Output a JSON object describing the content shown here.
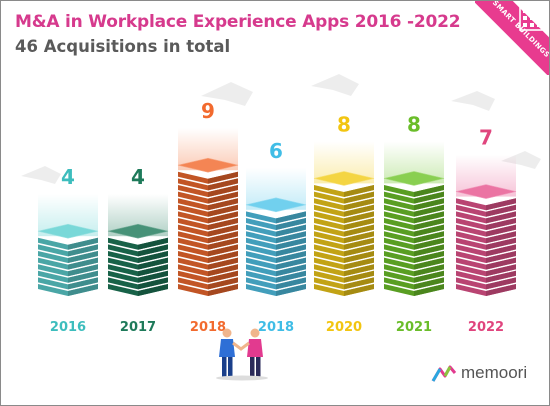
{
  "header": {
    "title": "M&A in Workplace Experience Apps 2016 -2022",
    "subtitle": "46 Acquisitions in total"
  },
  "badge": {
    "label": "SMART BUILDINGS",
    "color": "#e83b8f"
  },
  "logo": {
    "text": "memoori"
  },
  "chart_data": {
    "type": "bar",
    "title": "M&A in Workplace Experience Apps 2016 -2022",
    "subtitle": "46 Acquisitions in total",
    "categories": [
      "2016",
      "2017",
      "2018",
      "2018",
      "2020",
      "2021",
      "2022"
    ],
    "values": [
      4,
      4,
      9,
      6,
      8,
      8,
      7
    ],
    "colors": [
      "#5ccfcf",
      "#1e7a5a",
      "#f26a2e",
      "#52c6ea",
      "#f2cc1a",
      "#6fc52b",
      "#e7558f"
    ],
    "label_colors": [
      "#3dbdbd",
      "#1e7a5a",
      "#f26a2e",
      "#40bde6",
      "#f2c511",
      "#6abd2a",
      "#e0457e"
    ],
    "xlabel": "",
    "ylabel": "",
    "ylim": [
      0,
      10
    ],
    "grid": false,
    "legend": "none"
  }
}
